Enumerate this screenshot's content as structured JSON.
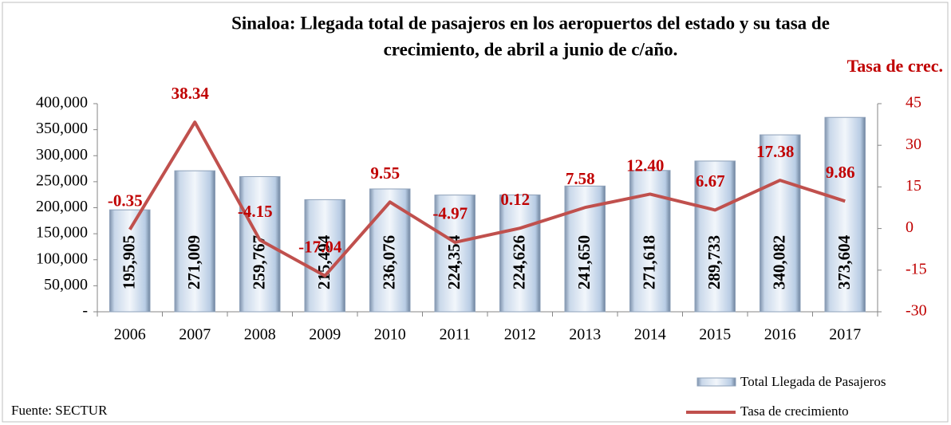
{
  "chart_data": {
    "type": "bar",
    "title": [
      "Sinaloa: Llegada total de pasajeros en los aeropuertos del estado y su tasa de",
      "crecimiento, de abril a junio de c/año."
    ],
    "y2_label": "Tasa de crec.",
    "source": "Fuente: SECTUR",
    "categories": [
      "2006",
      "2007",
      "2008",
      "2009",
      "2010",
      "2011",
      "2012",
      "2013",
      "2014",
      "2015",
      "2016",
      "2017"
    ],
    "series": [
      {
        "name": "Total Llegada de Pasajeros",
        "type": "bar",
        "color": "#b8cce4",
        "values": [
          195905,
          271009,
          259767,
          215494,
          236076,
          224354,
          224626,
          241650,
          271618,
          289733,
          340082,
          373604
        ],
        "value_labels": [
          "195,905",
          "271,009",
          "259,767",
          "215,494",
          "236,076",
          "224,354",
          "224,626",
          "241,650",
          "271,618",
          "289,733",
          "340,082",
          "373,604"
        ]
      },
      {
        "name": "Tasa de crecimiento",
        "type": "line",
        "axis": "y2",
        "color": "#c0504d",
        "values": [
          -0.35,
          38.34,
          -4.15,
          -17.04,
          9.55,
          -4.97,
          0.12,
          7.58,
          12.4,
          6.67,
          17.38,
          9.86
        ],
        "value_labels": [
          "-0.35",
          "38.34",
          "-4.15",
          "-17.04",
          "9.55",
          "-4.97",
          "0.12",
          "7.58",
          "12.40",
          "6.67",
          "17.38",
          "9.86"
        ]
      }
    ],
    "ylim": [
      0,
      400000
    ],
    "yticks": [
      {
        "value": 0,
        "label": "-"
      },
      {
        "value": 50000,
        "label": "50,000"
      },
      {
        "value": 100000,
        "label": "100,000"
      },
      {
        "value": 150000,
        "label": "150,000"
      },
      {
        "value": 200000,
        "label": "200,000"
      },
      {
        "value": 250000,
        "label": "250,000"
      },
      {
        "value": 300000,
        "label": "300,000"
      },
      {
        "value": 350000,
        "label": "350,000"
      },
      {
        "value": 400000,
        "label": "400,000"
      }
    ],
    "y2lim": [
      -30,
      45
    ],
    "y2ticks": [
      -30,
      -15,
      0,
      15,
      30,
      45
    ],
    "grid": false,
    "legend": "bottom-right"
  }
}
